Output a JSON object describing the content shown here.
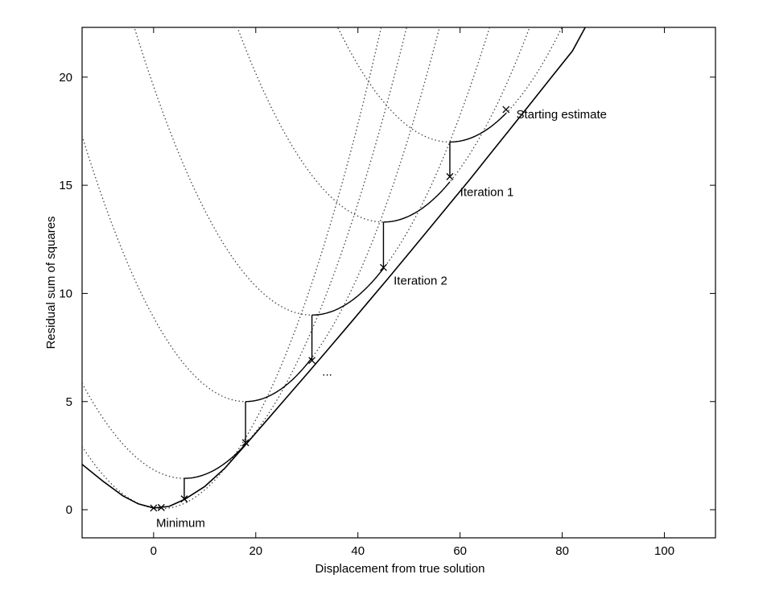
{
  "chart_data": {
    "type": "line",
    "title": "",
    "xlabel": "Displacement from true solution",
    "ylabel": "Residual sum of squares",
    "xlim": [
      -14,
      110
    ],
    "ylim": [
      -1.3,
      22.3
    ],
    "xticks": [
      0,
      20,
      40,
      60,
      80,
      100
    ],
    "yticks": [
      0,
      5,
      10,
      15,
      20
    ],
    "xtick_labels": [
      "0",
      "20",
      "40",
      "60",
      "80",
      "100"
    ],
    "ytick_labels": [
      "0",
      "5",
      "10",
      "15",
      "20"
    ],
    "grid": false,
    "legend": "none",
    "series": [
      {
        "style": "solid",
        "x": [
          -14,
          -10,
          -6,
          -3,
          0,
          3,
          6,
          10,
          14,
          18,
          22,
          26,
          30,
          34,
          38,
          42,
          46,
          50,
          54,
          58,
          62,
          66,
          70,
          74,
          78,
          82,
          84.5
        ],
        "values": [
          2.1,
          1.33,
          0.64,
          0.27,
          0.08,
          0.15,
          0.47,
          1.07,
          1.93,
          3.0,
          4.09,
          5.18,
          6.27,
          7.37,
          8.48,
          9.6,
          10.72,
          11.86,
          13.0,
          14.15,
          15.3,
          16.48,
          17.66,
          18.84,
          20.03,
          21.21,
          22.3
        ]
      }
    ],
    "iterates": [
      {
        "x": 69,
        "y": 18.5
      },
      {
        "x": 58,
        "y": 15.4
      },
      {
        "x": 45,
        "y": 11.2
      },
      {
        "x": 31,
        "y": 6.9
      },
      {
        "x": 18,
        "y": 3.1
      },
      {
        "x": 6,
        "y": 0.5
      },
      {
        "x": 1.5,
        "y": 0.1
      },
      {
        "x": 0,
        "y": 0.08
      }
    ],
    "quadratic_models": [
      {
        "vertex_x": 58,
        "vertex_y": 17.0,
        "curvature": 0.011
      },
      {
        "vertex_x": 45,
        "vertex_y": 13.3,
        "curvature": 0.011
      },
      {
        "vertex_x": 31,
        "vertex_y": 9.0,
        "curvature": 0.011
      },
      {
        "vertex_x": 18,
        "vertex_y": 5.0,
        "curvature": 0.012
      },
      {
        "vertex_x": 6,
        "vertex_y": 1.45,
        "curvature": 0.011
      },
      {
        "vertex_x": 1.5,
        "vertex_y": 0.05,
        "curvature": 0.012
      }
    ],
    "annotations": [
      {
        "text": "Starting estimate",
        "x": 71,
        "y": 18.1
      },
      {
        "text": "Iteration 1",
        "x": 60,
        "y": 14.5
      },
      {
        "text": "Iteration 2",
        "x": 47,
        "y": 10.4
      },
      {
        "text": "...",
        "x": 33,
        "y": 6.2
      },
      {
        "text": "Minimum",
        "x": 0.5,
        "y": -0.8
      }
    ]
  }
}
